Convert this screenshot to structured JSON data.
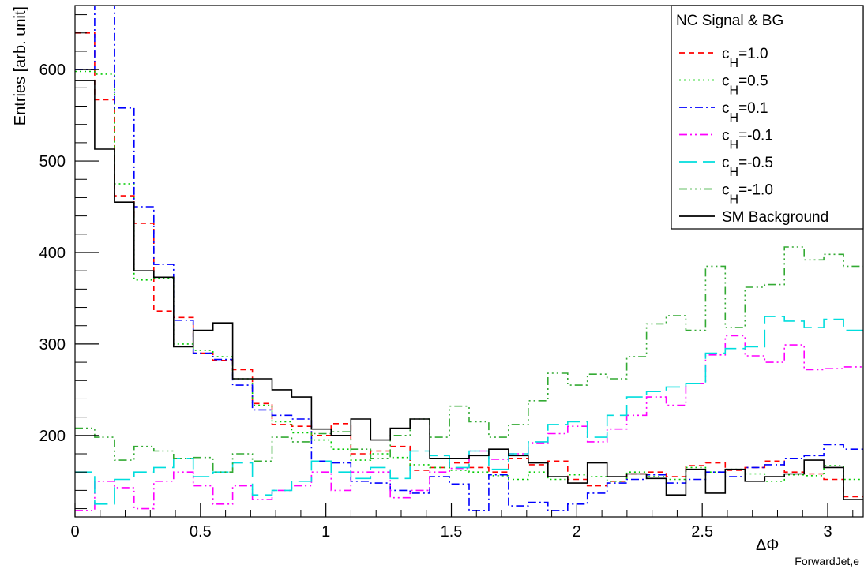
{
  "chart_data": {
    "type": "line",
    "subtype": "step-histogram",
    "xlabel_symbol": "ΔΦ",
    "xlabel_subscript": "ForwardJet,e",
    "ylabel": "Entries [arb. unit]",
    "xlim": [
      0,
      3.1416
    ],
    "ylim": [
      111,
      670
    ],
    "x_ticks": [
      0,
      0.5,
      1,
      1.5,
      2,
      2.5,
      3
    ],
    "x_tick_labels": [
      "0",
      "0.5",
      "1",
      "1.5",
      "2",
      "2.5",
      "3"
    ],
    "y_ticks": [
      200,
      300,
      400,
      500,
      600
    ],
    "y_tick_labels": [
      "200",
      "300",
      "400",
      "500",
      "600"
    ],
    "bin_edges": [
      0,
      0.0785,
      0.1571,
      0.2356,
      0.3142,
      0.3927,
      0.4712,
      0.5498,
      0.6283,
      0.7069,
      0.7854,
      0.8639,
      0.9425,
      1.021,
      1.0996,
      1.1781,
      1.2566,
      1.3352,
      1.4137,
      1.4923,
      1.5708,
      1.6493,
      1.7279,
      1.8064,
      1.885,
      1.9635,
      2.042,
      2.1206,
      2.1991,
      2.2777,
      2.3562,
      2.4347,
      2.5133,
      2.5918,
      2.6704,
      2.7489,
      2.8274,
      2.906,
      2.9845,
      3.0631,
      3.1416
    ],
    "legend": {
      "title": "NC Signal & BG",
      "position": "top-right",
      "entries": [
        {
          "base": "c",
          "sub": "H",
          "suffix": "=1.0"
        },
        {
          "base": "c",
          "sub": "H",
          "suffix": "=0.5"
        },
        {
          "base": "c",
          "sub": "H",
          "suffix": "=0.1"
        },
        {
          "base": "c",
          "sub": "H",
          "suffix": "=-0.1"
        },
        {
          "base": "c",
          "sub": "H",
          "suffix": "=-0.5"
        },
        {
          "base": "c",
          "sub": "H",
          "suffix": "=-1.0"
        },
        {
          "base": "",
          "sub": "",
          "suffix": "SM Background"
        }
      ]
    },
    "series": [
      {
        "name": "c_H=1.0",
        "color": "#ff0000",
        "dash": "7,5",
        "values": [
          640,
          567,
          462,
          432,
          336,
          329,
          290,
          282,
          272,
          235,
          212,
          210,
          200,
          213,
          180,
          183,
          188,
          162,
          165,
          170,
          165,
          160,
          175,
          168,
          172,
          152,
          145,
          150,
          158,
          160,
          155,
          167,
          170,
          162,
          165,
          172,
          160,
          158,
          152,
          133
        ]
      },
      {
        "name": "c_H=0.5",
        "color": "#00cc00",
        "dash": "2,4",
        "values": [
          598,
          595,
          475,
          370,
          372,
          300,
          293,
          286,
          262,
          233,
          215,
          203,
          195,
          185,
          173,
          180,
          176,
          168,
          165,
          162,
          160,
          156,
          152,
          160,
          152,
          157,
          155,
          150,
          160,
          155,
          152,
          165,
          160,
          163,
          158,
          150,
          157,
          156,
          167,
          152
        ]
      },
      {
        "name": "c_H=0.1",
        "color": "#0000ff",
        "dash": "10,4,2,4",
        "values": [
          600,
          840,
          558,
          450,
          387,
          326,
          290,
          283,
          255,
          228,
          222,
          218,
          172,
          170,
          150,
          148,
          140,
          137,
          155,
          147,
          118,
          157,
          123,
          127,
          118,
          125,
          137,
          148,
          152,
          157,
          148,
          152,
          160,
          155,
          165,
          168,
          175,
          178,
          190,
          185
        ]
      },
      {
        "name": "c_H=-0.1",
        "color": "#ff00ff",
        "dash": "10,4,2,4,2,4",
        "values": [
          118,
          150,
          143,
          120,
          150,
          160,
          145,
          125,
          145,
          130,
          140,
          145,
          160,
          140,
          160,
          160,
          132,
          140,
          160,
          164,
          183,
          174,
          180,
          192,
          202,
          210,
          193,
          207,
          222,
          242,
          233,
          257,
          288,
          309,
          287,
          280,
          299,
          272,
          273,
          275
        ]
      },
      {
        "name": "c_H=-0.5",
        "color": "#00dddd",
        "dash": "22,8",
        "values": [
          160,
          125,
          152,
          160,
          165,
          175,
          155,
          160,
          170,
          135,
          140,
          150,
          172,
          160,
          153,
          165,
          153,
          183,
          178,
          165,
          183,
          163,
          180,
          193,
          212,
          215,
          198,
          222,
          242,
          248,
          253,
          257,
          290,
          295,
          297,
          330,
          325,
          318,
          327,
          315
        ]
      },
      {
        "name": "c_H=-1.0",
        "color": "#33aa33",
        "dash": "10,4,2,4,2,4,2,4",
        "values": [
          208,
          198,
          173,
          188,
          183,
          175,
          176,
          160,
          180,
          172,
          198,
          193,
          202,
          204,
          185,
          175,
          200,
          218,
          198,
          232,
          215,
          198,
          212,
          238,
          268,
          255,
          267,
          262,
          286,
          322,
          331,
          315,
          385,
          318,
          362,
          365,
          406,
          392,
          398,
          385
        ]
      },
      {
        "name": "SM Background",
        "color": "#000000",
        "dash": "",
        "values": [
          588,
          513,
          455,
          380,
          373,
          297,
          315,
          323,
          262,
          262,
          250,
          242,
          207,
          200,
          218,
          195,
          208,
          218,
          175,
          175,
          178,
          185,
          178,
          170,
          155,
          148,
          170,
          155,
          158,
          153,
          135,
          163,
          137,
          163,
          150,
          155,
          158,
          173,
          165,
          130
        ]
      }
    ]
  }
}
